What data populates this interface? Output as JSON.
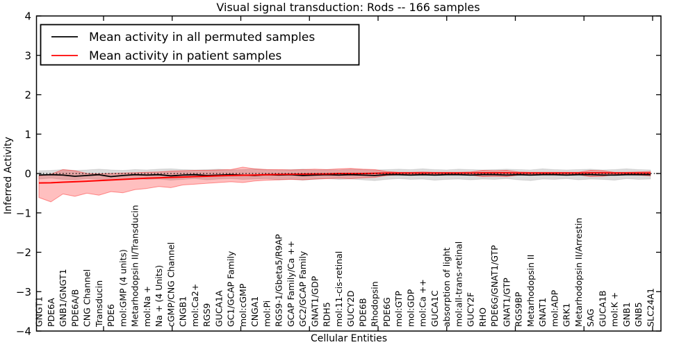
{
  "chart_data": {
    "type": "line",
    "title": "Visual signal transduction: Rods -- 166 samples",
    "xlabel": "Cellular Entities",
    "ylabel": "Inferred Activity",
    "ylim": [
      -4,
      4
    ],
    "grid": false,
    "yticks": [
      4,
      3,
      2,
      1,
      0,
      -1,
      -2,
      -3,
      -4
    ],
    "ytick_labels": [
      "4",
      "3",
      "2",
      "1",
      "0",
      "−1",
      "−2",
      "−3",
      "−4"
    ],
    "zero_reference_line": {
      "value": 0,
      "style": "dotted",
      "color": "#000000"
    },
    "legend": {
      "position": "upper left",
      "items": [
        {
          "label": "Mean activity in all permuted samples",
          "color": "#000000"
        },
        {
          "label": "Mean activity in patient samples",
          "color": "#ff0000"
        }
      ]
    },
    "categories": [
      "GNGT1",
      "PDE6A",
      "GNB1/GNGT1",
      "PDE6A/B",
      "CNG Channel",
      "Transducin",
      "PDE6",
      "mol:GMP (4 units)",
      "Metarhodopsin II/Transducin",
      "mol:Na +",
      "Na + (4 Units)",
      "cGMP/CNG Channel",
      "CNGB1",
      "mol:Ca2+",
      "RGS9",
      "GUCA1A",
      "GC1/GCAP Family",
      "mol:cGMP",
      "CNGA1",
      "mol:Pi",
      "RGS9-1/Gbeta5/R9AP",
      "GCAP Family/Ca ++",
      "GC2/GCAP Family",
      "GNAT1/GDP",
      "RDH5",
      "mol:11-cis-retinal",
      "GUCY2D",
      "PDE6B",
      "Rhodopsin",
      "PDE6G",
      "mol:GTP",
      "mol:GDP",
      "mol:Ca ++",
      "GUCA1C",
      "absorption of light",
      "mol:all-trans-retinal",
      "GUCY2F",
      "RHO",
      "PDE6G/GNAT1/GTP",
      "GNAT1/GTP",
      "RGS9BP",
      "Metarhodopsin II",
      "GNAT1",
      "mol:ADP",
      "GRK1",
      "Metarhodopsin II/Arrestin",
      "SAG",
      "GUCA1B",
      "mol:K +",
      "GNB1",
      "GNB5",
      "SLC24A1"
    ],
    "series": [
      {
        "name": "Mean activity in all permuted samples",
        "color": "#000000",
        "line_width": 1.8,
        "values": [
          -0.04,
          -0.03,
          -0.04,
          -0.07,
          -0.05,
          -0.03,
          -0.08,
          -0.05,
          -0.03,
          -0.04,
          -0.03,
          -0.06,
          -0.04,
          -0.03,
          -0.05,
          -0.04,
          -0.03,
          -0.04,
          -0.05,
          -0.03,
          -0.04,
          -0.03,
          -0.05,
          -0.04,
          -0.03,
          -0.04,
          -0.03,
          -0.04,
          -0.05,
          -0.03,
          -0.03,
          -0.04,
          -0.03,
          -0.04,
          -0.03,
          -0.03,
          -0.04,
          -0.03,
          -0.03,
          -0.04,
          -0.03,
          -0.04,
          -0.03,
          -0.03,
          -0.04,
          -0.03,
          -0.03,
          -0.04,
          -0.04,
          -0.03,
          -0.03,
          -0.03
        ],
        "band": {
          "fill": "rgba(0,0,0,0.14)",
          "edge": "rgba(0,0,0,0.10)",
          "upper": [
            0.07,
            0.08,
            0.1,
            0.08,
            0.09,
            0.11,
            0.09,
            0.08,
            0.1,
            0.09,
            0.11,
            0.12,
            0.1,
            0.09,
            0.1,
            0.11,
            0.09,
            0.1,
            0.12,
            0.1,
            0.09,
            0.1,
            0.11,
            0.09,
            0.1,
            0.09,
            0.11,
            0.1,
            0.09,
            0.1,
            0.11,
            0.1,
            0.12,
            0.1,
            0.09,
            0.11,
            0.1,
            0.09,
            0.1,
            0.11,
            0.1,
            0.09,
            0.12,
            0.1,
            0.09,
            0.1,
            0.11,
            0.09,
            0.1,
            0.12,
            0.1,
            0.09
          ],
          "lower": [
            -0.14,
            -0.12,
            -0.15,
            -0.16,
            -0.13,
            -0.14,
            -0.17,
            -0.14,
            -0.13,
            -0.15,
            -0.14,
            -0.17,
            -0.15,
            -0.13,
            -0.16,
            -0.14,
            -0.13,
            -0.15,
            -0.14,
            -0.13,
            -0.16,
            -0.14,
            -0.17,
            -0.15,
            -0.13,
            -0.15,
            -0.14,
            -0.16,
            -0.18,
            -0.15,
            -0.13,
            -0.15,
            -0.14,
            -0.17,
            -0.15,
            -0.14,
            -0.16,
            -0.14,
            -0.15,
            -0.13,
            -0.16,
            -0.18,
            -0.14,
            -0.15,
            -0.13,
            -0.16,
            -0.14,
            -0.15,
            -0.17,
            -0.13,
            -0.15,
            -0.14
          ]
        }
      },
      {
        "name": "Mean activity in patient samples",
        "color": "#ff0000",
        "line_width": 2,
        "values": [
          -0.24,
          -0.235,
          -0.22,
          -0.21,
          -0.195,
          -0.18,
          -0.165,
          -0.15,
          -0.135,
          -0.12,
          -0.11,
          -0.1,
          -0.09,
          -0.08,
          -0.07,
          -0.06,
          -0.05,
          -0.045,
          -0.04,
          -0.03,
          -0.025,
          -0.02,
          -0.015,
          -0.01,
          -0.01,
          0.0,
          0.0,
          0.0,
          0.005,
          0.01,
          0.01,
          0.01,
          0.01,
          0.01,
          0.01,
          0.01,
          0.01,
          0.015,
          0.015,
          0.015,
          0.01,
          0.01,
          0.01,
          0.01,
          0.01,
          0.01,
          0.015,
          0.015,
          0.01,
          0.01,
          0.01,
          0.01
        ],
        "band": {
          "fill": "rgba(255,0,0,0.25)",
          "edge": "rgba(255,0,0,0.40)",
          "upper": [
            -0.06,
            -0.02,
            0.1,
            0.07,
            0.0,
            -0.01,
            0.0,
            0.01,
            0.02,
            0.03,
            0.04,
            0.06,
            0.07,
            0.08,
            0.08,
            0.09,
            0.1,
            0.16,
            0.12,
            0.1,
            0.1,
            0.09,
            0.1,
            0.11,
            0.1,
            0.12,
            0.13,
            0.11,
            0.1,
            0.05,
            0.03,
            0.03,
            0.04,
            0.03,
            0.03,
            0.03,
            0.04,
            0.08,
            0.07,
            0.08,
            0.04,
            0.03,
            0.03,
            0.03,
            0.03,
            0.03,
            0.08,
            0.07,
            0.03,
            0.03,
            0.04,
            0.05
          ],
          "lower": [
            -0.61,
            -0.72,
            -0.52,
            -0.58,
            -0.5,
            -0.55,
            -0.46,
            -0.49,
            -0.41,
            -0.38,
            -0.33,
            -0.36,
            -0.29,
            -0.27,
            -0.25,
            -0.23,
            -0.21,
            -0.23,
            -0.19,
            -0.17,
            -0.16,
            -0.15,
            -0.16,
            -0.14,
            -0.13,
            -0.12,
            -0.13,
            -0.11,
            -0.1,
            -0.05,
            -0.03,
            -0.03,
            -0.04,
            -0.03,
            -0.03,
            -0.03,
            -0.04,
            -0.08,
            -0.07,
            -0.08,
            -0.04,
            -0.03,
            -0.03,
            -0.03,
            -0.03,
            -0.03,
            -0.08,
            -0.07,
            -0.03,
            -0.03,
            -0.04,
            -0.06
          ]
        }
      }
    ]
  }
}
